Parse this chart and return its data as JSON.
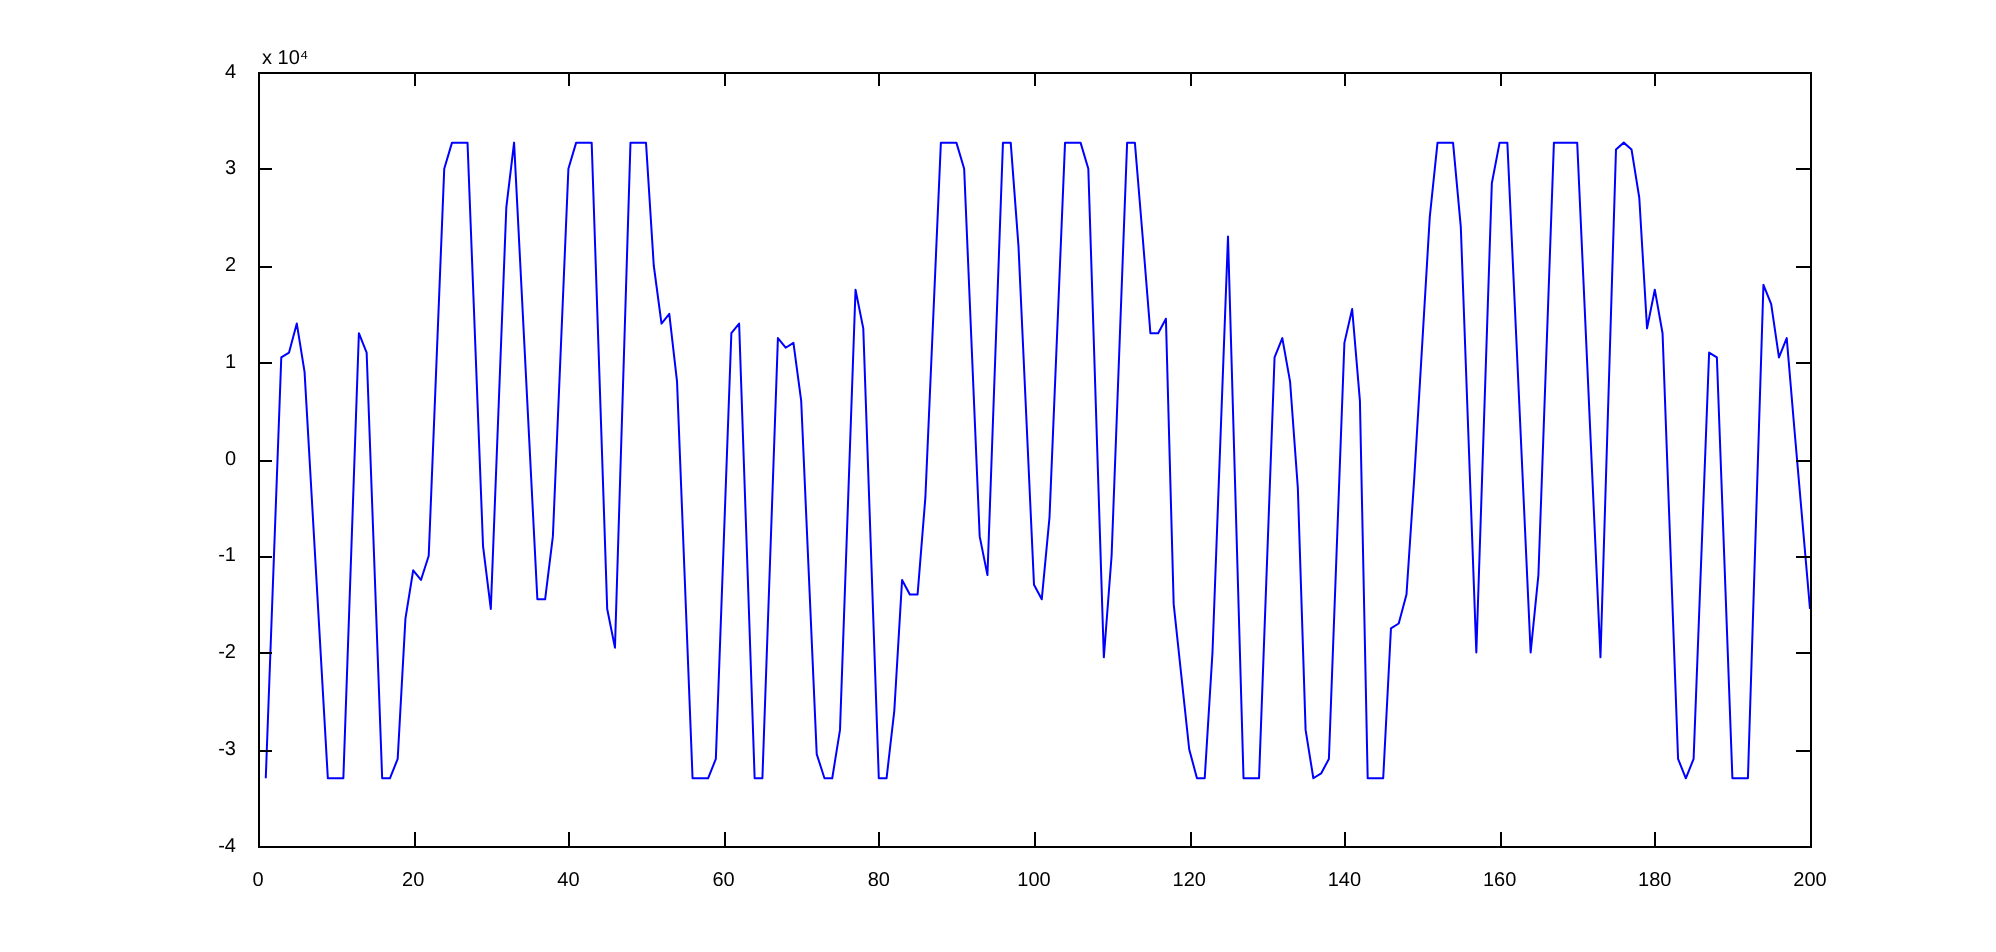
{
  "chart_data": {
    "type": "line",
    "annotations": [
      "x 10⁴"
    ],
    "x": [
      1,
      3,
      4,
      5,
      6,
      9,
      11,
      13,
      14,
      16,
      17,
      18,
      19,
      20,
      21,
      22,
      24,
      25,
      27,
      29,
      30,
      32,
      33,
      36,
      37,
      38,
      40,
      41,
      43,
      45,
      46,
      48,
      50,
      51,
      52,
      53,
      54,
      56,
      58,
      59,
      61,
      62,
      64,
      65,
      67,
      68,
      69,
      70,
      72,
      73,
      74,
      75,
      77,
      78,
      80,
      81,
      82,
      83,
      84,
      85,
      86,
      88,
      90,
      91,
      93,
      94,
      96,
      97,
      98,
      100,
      101,
      102,
      104,
      106,
      107,
      109,
      110,
      112,
      113,
      114,
      115,
      116,
      117,
      118,
      120,
      121,
      122,
      123,
      125,
      127,
      129,
      131,
      132,
      133,
      134,
      135,
      136,
      137,
      138,
      140,
      141,
      142,
      143,
      145,
      146,
      147,
      148,
      149,
      151,
      152,
      154,
      155,
      157,
      159,
      160,
      161,
      164,
      165,
      167,
      168,
      170,
      173,
      175,
      176,
      177,
      178,
      179,
      180,
      181,
      183,
      184,
      185,
      187,
      188,
      190,
      192,
      194,
      195,
      196,
      197,
      198,
      200
    ],
    "series": [
      {
        "color": "#0000ff",
        "values": [
          -3.3,
          1.05,
          1.1,
          1.4,
          0.9,
          -3.3,
          -3.3,
          1.3,
          1.1,
          -3.3,
          -3.3,
          -3.1,
          -1.65,
          -1.15,
          -1.25,
          -1.0,
          3.0,
          3.27,
          3.27,
          -0.9,
          -1.55,
          2.6,
          3.27,
          -1.45,
          -1.45,
          -0.8,
          3.0,
          3.27,
          3.27,
          -1.55,
          -1.95,
          3.27,
          3.27,
          2.0,
          1.4,
          1.5,
          0.8,
          -3.3,
          -3.3,
          -3.1,
          1.3,
          1.4,
          -3.3,
          -3.3,
          1.25,
          1.15,
          1.2,
          0.6,
          -3.05,
          -3.3,
          -3.3,
          -2.8,
          1.75,
          1.35,
          -3.3,
          -3.3,
          -2.6,
          -1.25,
          -1.4,
          -1.4,
          -0.4,
          3.27,
          3.27,
          3.0,
          -0.8,
          -1.2,
          3.27,
          3.27,
          2.2,
          -1.3,
          -1.45,
          -0.6,
          3.27,
          3.27,
          3.0,
          -2.05,
          -1.0,
          3.27,
          3.27,
          2.3,
          1.3,
          1.3,
          1.45,
          -1.5,
          -3.0,
          -3.3,
          -3.3,
          -2.0,
          2.3,
          -3.3,
          -3.3,
          1.05,
          1.25,
          0.8,
          -0.3,
          -2.8,
          -3.3,
          -3.25,
          -3.1,
          1.2,
          1.55,
          0.6,
          -3.3,
          -3.3,
          -1.75,
          -1.7,
          -1.4,
          -0.2,
          2.5,
          3.27,
          3.27,
          2.4,
          -2.0,
          2.85,
          3.27,
          3.27,
          -2.0,
          -1.2,
          3.27,
          3.27,
          3.27,
          -2.05,
          3.2,
          3.27,
          3.2,
          2.7,
          1.35,
          1.75,
          1.3,
          -3.1,
          -3.3,
          -3.1,
          1.1,
          1.05,
          -3.3,
          -3.3,
          1.8,
          1.6,
          1.05,
          1.25,
          0.3,
          -1.55
        ]
      }
    ],
    "xlim": [
      0,
      200
    ],
    "xticks": [
      0,
      20,
      40,
      60,
      80,
      100,
      120,
      140,
      160,
      180,
      200
    ],
    "ylim": [
      -4,
      4
    ],
    "yticks": [
      -4,
      -3,
      -2,
      -1,
      0,
      1,
      2,
      3,
      4
    ]
  }
}
